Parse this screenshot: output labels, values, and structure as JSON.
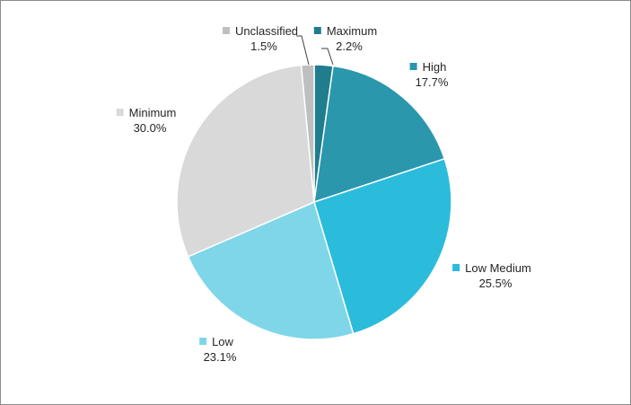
{
  "chart_data": {
    "type": "pie",
    "title": "",
    "legend": "none",
    "slices": [
      {
        "label": "Maximum",
        "value": 2.2,
        "value_label": "2.2%",
        "color": "#1f7d8e"
      },
      {
        "label": "High",
        "value": 17.7,
        "value_label": "17.7%",
        "color": "#2a97ad"
      },
      {
        "label": "Low Medium",
        "value": 25.5,
        "value_label": "25.5%",
        "color": "#2bbcdc"
      },
      {
        "label": "Low",
        "value": 23.1,
        "value_label": "23.1%",
        "color": "#7fd6e8"
      },
      {
        "label": "Minimum",
        "value": 30.0,
        "value_label": "30.0%",
        "color": "#d9d9d9"
      },
      {
        "label": "Unclassified",
        "value": 1.5,
        "value_label": "1.5%",
        "color": "#bfbfbf"
      }
    ]
  }
}
